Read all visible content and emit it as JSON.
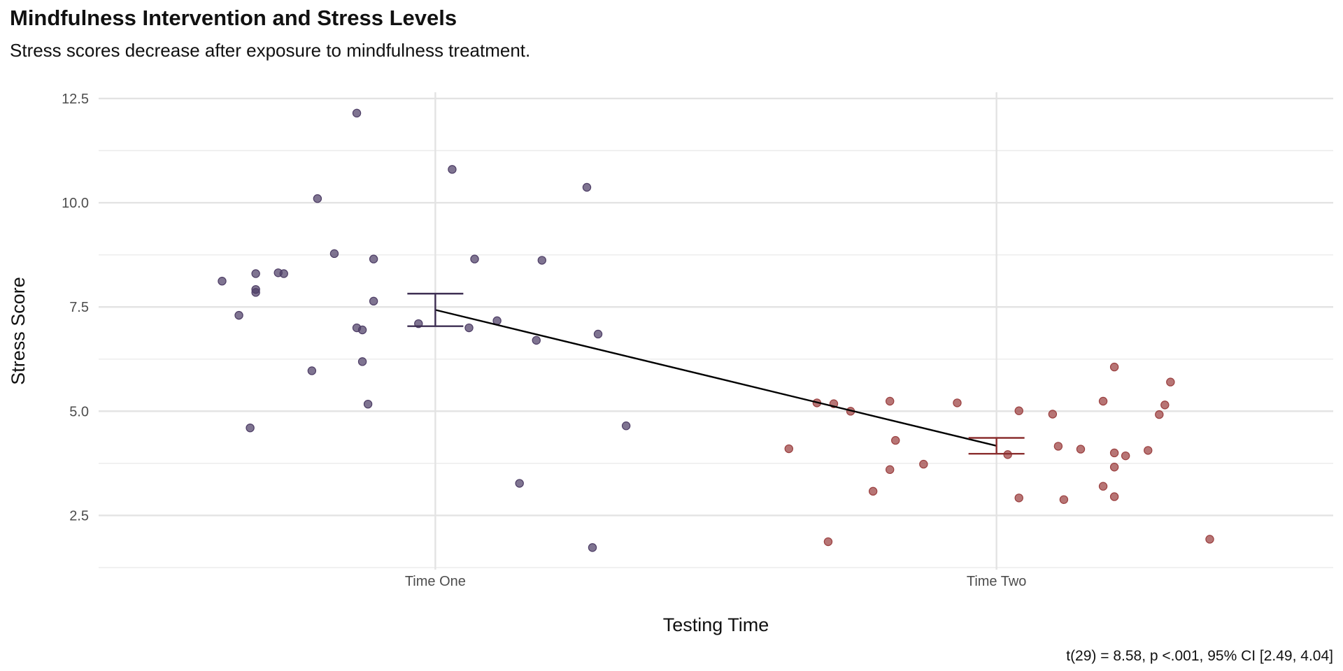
{
  "chart_data": {
    "type": "scatter",
    "title": "Mindfulness Intervention and Stress Levels",
    "subtitle": "Stress scores decrease after exposure to mindfulness treatment.",
    "caption": "t(29) = 8.58, p <.001, 95% CI [2.49, 4.04]",
    "xlabel": "Testing Time",
    "ylabel": "Stress Score",
    "categories": [
      "Time One",
      "Time Two"
    ],
    "ylim": [
      1.2,
      12.65
    ],
    "yticks": [
      2.5,
      5.0,
      7.5,
      10.0,
      12.5
    ],
    "ytick_labels": [
      "2.5",
      "5.0",
      "7.5",
      "10.0",
      "12.5"
    ],
    "grid": true,
    "legend": "none",
    "means": [
      7.43,
      4.17
    ],
    "error_bars": [
      {
        "category": "Time One",
        "low": 7.04,
        "high": 7.82
      },
      {
        "category": "Time Two",
        "low": 3.98,
        "high": 4.36
      }
    ],
    "series": [
      {
        "category": "Time One",
        "color": "#4e3e66",
        "points": [
          {
            "x": 0.62,
            "y": 8.12
          },
          {
            "x": 0.65,
            "y": 7.3
          },
          {
            "x": 0.67,
            "y": 4.6
          },
          {
            "x": 0.68,
            "y": 8.3
          },
          {
            "x": 0.68,
            "y": 7.92
          },
          {
            "x": 0.68,
            "y": 7.85
          },
          {
            "x": 0.72,
            "y": 8.32
          },
          {
            "x": 0.73,
            "y": 8.3
          },
          {
            "x": 0.78,
            "y": 5.97
          },
          {
            "x": 0.79,
            "y": 10.1
          },
          {
            "x": 0.82,
            "y": 8.78
          },
          {
            "x": 0.86,
            "y": 12.15
          },
          {
            "x": 0.86,
            "y": 7.0
          },
          {
            "x": 0.87,
            "y": 6.95
          },
          {
            "x": 0.87,
            "y": 6.19
          },
          {
            "x": 0.88,
            "y": 5.17
          },
          {
            "x": 0.89,
            "y": 8.65
          },
          {
            "x": 0.89,
            "y": 7.64
          },
          {
            "x": 0.97,
            "y": 7.1
          },
          {
            "x": 1.03,
            "y": 10.8
          },
          {
            "x": 1.06,
            "y": 7.0
          },
          {
            "x": 1.07,
            "y": 8.65
          },
          {
            "x": 1.11,
            "y": 7.17
          },
          {
            "x": 1.15,
            "y": 3.27
          },
          {
            "x": 1.18,
            "y": 6.7
          },
          {
            "x": 1.19,
            "y": 8.62
          },
          {
            "x": 1.27,
            "y": 10.37
          },
          {
            "x": 1.28,
            "y": 1.73
          },
          {
            "x": 1.29,
            "y": 6.85
          },
          {
            "x": 1.34,
            "y": 4.65
          }
        ]
      },
      {
        "category": "Time Two",
        "color": "#9b4040",
        "points": [
          {
            "x": 1.63,
            "y": 4.1
          },
          {
            "x": 1.68,
            "y": 5.2
          },
          {
            "x": 1.7,
            "y": 1.87
          },
          {
            "x": 1.71,
            "y": 5.18
          },
          {
            "x": 1.74,
            "y": 5.0
          },
          {
            "x": 1.78,
            "y": 3.08
          },
          {
            "x": 1.81,
            "y": 3.6
          },
          {
            "x": 1.81,
            "y": 5.24
          },
          {
            "x": 1.82,
            "y": 4.3
          },
          {
            "x": 1.87,
            "y": 3.73
          },
          {
            "x": 1.93,
            "y": 5.2
          },
          {
            "x": 2.02,
            "y": 3.96
          },
          {
            "x": 2.04,
            "y": 2.92
          },
          {
            "x": 2.04,
            "y": 5.01
          },
          {
            "x": 2.1,
            "y": 4.93
          },
          {
            "x": 2.11,
            "y": 4.16
          },
          {
            "x": 2.12,
            "y": 2.88
          },
          {
            "x": 2.15,
            "y": 4.09
          },
          {
            "x": 2.19,
            "y": 3.2
          },
          {
            "x": 2.19,
            "y": 5.24
          },
          {
            "x": 2.21,
            "y": 3.66
          },
          {
            "x": 2.21,
            "y": 4.0
          },
          {
            "x": 2.21,
            "y": 2.95
          },
          {
            "x": 2.21,
            "y": 6.06
          },
          {
            "x": 2.23,
            "y": 3.93
          },
          {
            "x": 2.27,
            "y": 4.06
          },
          {
            "x": 2.29,
            "y": 4.92
          },
          {
            "x": 2.3,
            "y": 5.15
          },
          {
            "x": 2.31,
            "y": 5.7
          },
          {
            "x": 2.38,
            "y": 1.93
          }
        ]
      }
    ]
  }
}
